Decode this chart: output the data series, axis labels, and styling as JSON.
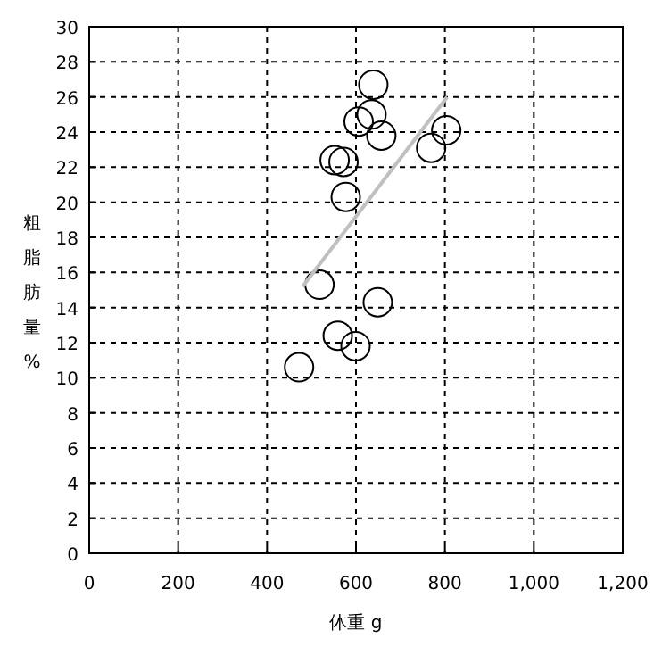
{
  "chart_data": {
    "type": "scatter",
    "xlabel": "体重 g",
    "ylabel": "粗脂肪量%",
    "xlim": [
      0,
      1200
    ],
    "ylim": [
      0,
      30
    ],
    "xticks": [
      0,
      200,
      400,
      600,
      800,
      {
        "value": 1000,
        "label": "1,000"
      },
      {
        "value": 1200,
        "label": "1,200"
      }
    ],
    "yticks": [
      0,
      2,
      4,
      6,
      8,
      10,
      12,
      14,
      16,
      18,
      20,
      22,
      24,
      26,
      28,
      30
    ],
    "grid": true,
    "series": [
      {
        "marker": "circle",
        "color": "#000000",
        "x": [
          639,
          635,
          606,
          657,
          803,
          769,
          552,
          572,
          577,
          518,
          649,
          559,
          599,
          472
        ],
        "values": [
          26.7,
          25.0,
          24.6,
          23.8,
          24.1,
          23.1,
          22.4,
          22.3,
          20.3,
          15.3,
          14.3,
          12.4,
          11.8,
          10.6
        ]
      },
      {
        "type": "line",
        "color": "#c0c0c0",
        "x": [
          480,
          805
        ],
        "values": [
          15.2,
          26.0
        ]
      }
    ]
  }
}
